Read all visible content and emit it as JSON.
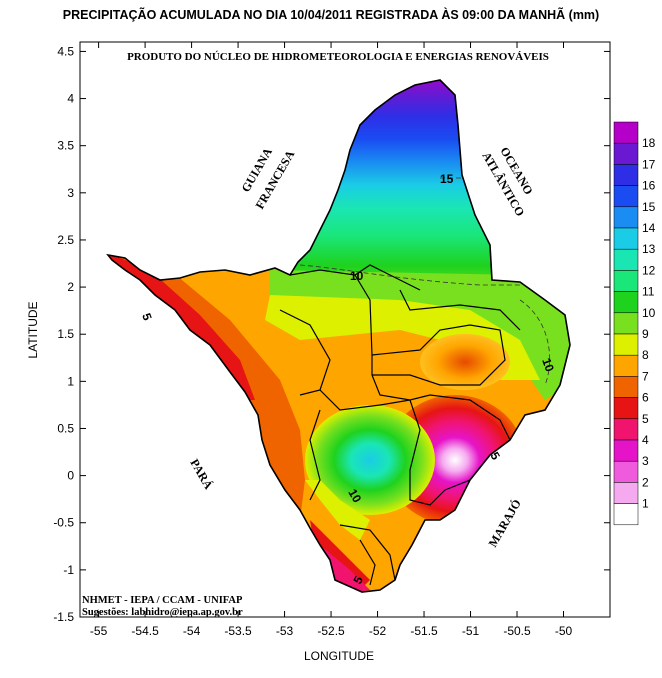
{
  "title": "PRECIPITAÇÃO ACUMULADA NO DIA 10/04/2011 REGISTRADA ÀS 09:00 DA MANHÃ (mm)",
  "subtitle": "PRODUTO DO NÚCLEO DE HIDROMETEOROLOGIA E ENERGIAS RENOVÁVEIS",
  "credits": {
    "line1": "NHMET - IEPA  /  CCAM - UNIFAP",
    "line2": "Sugestões: labhidro@iepa.ap.gov.br"
  },
  "regions": {
    "guiana_1": "GUIANA",
    "guiana_2": "FRANCESA",
    "oceano_1": "OCEANO",
    "oceano_2": "ATLÂNTICO",
    "para": "PARÁ",
    "marajo": "MARAJÓ"
  },
  "contour_labels": [
    "15",
    "10",
    "10",
    "5",
    "10",
    "5",
    "5"
  ],
  "colors": {
    "frame": "#000000",
    "state_outline": "#000000"
  },
  "chart_data": {
    "type": "heatmap",
    "title": "PRECIPITAÇÃO ACUMULADA NO DIA 10/04/2011 REGISTRADA ÀS 09:00 DA MANHÃ (mm)",
    "xlabel": "LONGITUDE",
    "ylabel": "LATITUDE",
    "xlim": [
      -55.2,
      -49.5
    ],
    "ylim": [
      -1.5,
      4.6
    ],
    "xticks": [
      "-55",
      "-54.5",
      "-54",
      "-53.5",
      "-53",
      "-52.5",
      "-52",
      "-51.5",
      "-51",
      "-50.5",
      "-50"
    ],
    "yticks": [
      "4.5",
      "4",
      "3.5",
      "3",
      "2.5",
      "2",
      "1.5",
      "1",
      "0.5",
      "0",
      "-0.5",
      "-1",
      "-1.5"
    ],
    "legend": {
      "labels": [
        "18",
        "17",
        "16",
        "15",
        "14",
        "13",
        "12",
        "11",
        "10",
        "9",
        "8",
        "7",
        "6",
        "5",
        "4",
        "3",
        "2",
        "1"
      ],
      "colors": [
        "#b400c8",
        "#6a18d2",
        "#2e2ee6",
        "#1a4cf2",
        "#1a8cf2",
        "#1acce6",
        "#1ae6b4",
        "#1ae67a",
        "#1ed21e",
        "#78e01e",
        "#dcf000",
        "#ffa500",
        "#f06400",
        "#e61414",
        "#f0146e",
        "#e614c8",
        "#f05adc",
        "#f5aaf0"
      ],
      "bottom_color": "#ffffff"
    },
    "features": [
      {
        "name": "max-rain-north",
        "lon": -51.3,
        "lat": 4.0,
        "value": 18
      },
      {
        "name": "min-rain-southeast",
        "lon": -51.0,
        "lat": 0.2,
        "value": 1
      },
      {
        "name": "local-max-center",
        "lon": -51.95,
        "lat": 0.2,
        "value": 14
      }
    ]
  }
}
